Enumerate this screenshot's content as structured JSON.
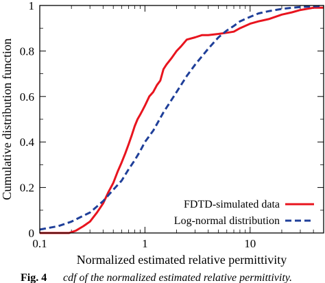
{
  "chart_data": {
    "type": "line",
    "xlabel": "Normalized estimated relative permittivity",
    "ylabel": "Cumulative distribution function",
    "xscale": "log",
    "xlim": [
      0.1,
      50
    ],
    "ylim": [
      0,
      1
    ],
    "x_ticks": [
      0.1,
      1,
      10
    ],
    "x_tick_labels": [
      "0.1",
      "1",
      "10"
    ],
    "y_ticks": [
      0,
      0.2,
      0.4,
      0.6,
      0.8,
      1
    ],
    "y_tick_labels": [
      "0",
      "0.2",
      "0.4",
      "0.6",
      "0.8",
      "1"
    ],
    "legend_position": "bottom-right",
    "series": [
      {
        "name": "FDTD-simulated data",
        "color": "#e8141e",
        "style": "solid",
        "x": [
          0.1,
          0.19,
          0.22,
          0.26,
          0.3,
          0.35,
          0.4,
          0.45,
          0.5,
          0.55,
          0.6,
          0.65,
          0.7,
          0.75,
          0.8,
          0.85,
          0.9,
          0.95,
          1.0,
          1.1,
          1.2,
          1.3,
          1.4,
          1.5,
          1.6,
          1.8,
          2.0,
          2.2,
          2.5,
          3.0,
          3.5,
          4.0,
          5.0,
          6.0,
          7.0,
          8.0,
          10.0,
          12.0,
          15.0,
          20.0,
          25.0,
          30.0,
          40.0,
          50.0
        ],
        "y": [
          0,
          0,
          0.01,
          0.03,
          0.05,
          0.09,
          0.13,
          0.18,
          0.22,
          0.27,
          0.31,
          0.35,
          0.39,
          0.43,
          0.47,
          0.5,
          0.52,
          0.54,
          0.56,
          0.6,
          0.62,
          0.65,
          0.67,
          0.72,
          0.74,
          0.77,
          0.8,
          0.82,
          0.85,
          0.86,
          0.87,
          0.87,
          0.875,
          0.88,
          0.885,
          0.9,
          0.92,
          0.93,
          0.94,
          0.96,
          0.97,
          0.98,
          0.99,
          0.99
        ]
      },
      {
        "name": "Log-normal distribution",
        "color": "#1f3f99",
        "style": "dashed",
        "x": [
          0.1,
          0.15,
          0.2,
          0.3,
          0.4,
          0.5,
          0.6,
          0.7,
          0.8,
          0.9,
          1.0,
          1.2,
          1.5,
          2.0,
          2.5,
          3.0,
          4.0,
          5.0,
          6.0,
          7.0,
          8.0,
          10.0,
          12.0,
          15.0,
          20.0,
          25.0,
          30.0,
          40.0,
          50.0
        ],
        "y": [
          0.015,
          0.03,
          0.05,
          0.09,
          0.14,
          0.19,
          0.23,
          0.28,
          0.32,
          0.36,
          0.4,
          0.45,
          0.53,
          0.62,
          0.69,
          0.74,
          0.81,
          0.86,
          0.89,
          0.91,
          0.93,
          0.95,
          0.965,
          0.975,
          0.985,
          0.99,
          0.993,
          0.996,
          0.998
        ]
      }
    ]
  },
  "caption": {
    "label": "Fig. 4",
    "text": "cdf of the normalized estimated relative permittivity."
  }
}
